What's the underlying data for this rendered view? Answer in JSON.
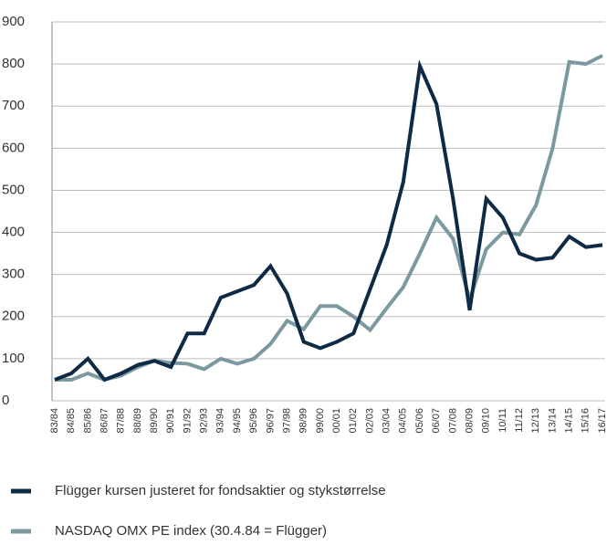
{
  "chart_data": {
    "type": "line",
    "categories": [
      "83/84",
      "84/85",
      "85/86",
      "86/87",
      "87/88",
      "88/89",
      "89/90",
      "90/91",
      "91/92",
      "92/93",
      "93/94",
      "94/95",
      "95/96",
      "96/97",
      "97/98",
      "98/99",
      "99/00",
      "00/01",
      "01/02",
      "02/03",
      "03/04",
      "04/05",
      "05/06",
      "06/07",
      "07/08",
      "08/09",
      "09/10",
      "10/11",
      "11/12",
      "12/13",
      "13/14",
      "14/15",
      "15/16",
      "16/17"
    ],
    "series": [
      {
        "name": "Flügger kursen justeret for fondsaktier og stykstørrelse",
        "color": "#0e2a44",
        "values": [
          50,
          65,
          100,
          50,
          65,
          85,
          95,
          80,
          160,
          160,
          245,
          260,
          275,
          320,
          255,
          140,
          125,
          140,
          160,
          265,
          370,
          520,
          795,
          705,
          480,
          215,
          480,
          435,
          350,
          335,
          340,
          390,
          365,
          370
        ]
      },
      {
        "name": "NASDAQ OMX PE index (30.4.84 = Flügger)",
        "color": "#7b999f",
        "values": [
          50,
          50,
          65,
          50,
          60,
          80,
          95,
          90,
          88,
          75,
          100,
          88,
          100,
          135,
          190,
          170,
          225,
          225,
          200,
          168,
          220,
          270,
          350,
          435,
          385,
          240,
          360,
          400,
          395,
          465,
          600,
          805,
          800,
          820
        ]
      }
    ],
    "ylim": [
      0,
      900
    ],
    "yticks": [
      0,
      100,
      200,
      300,
      400,
      500,
      600,
      700,
      800,
      900
    ],
    "grid": true
  }
}
